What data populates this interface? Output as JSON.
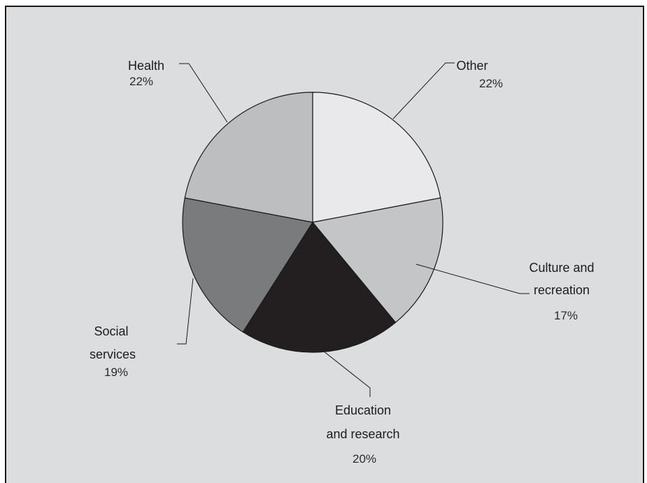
{
  "chart_data": {
    "type": "pie",
    "title": "",
    "slices": [
      {
        "label_lines": [
          "Other"
        ],
        "value": 22,
        "value_label": "22%",
        "color": "#e9e9eb"
      },
      {
        "label_lines": [
          "Culture and",
          "recreation"
        ],
        "value": 17,
        "value_label": "17%",
        "color": "#c4c5c7"
      },
      {
        "label_lines": [
          "Education",
          "and research"
        ],
        "value": 20,
        "value_label": "20%",
        "color": "#231f20"
      },
      {
        "label_lines": [
          "Social",
          "services"
        ],
        "value": 19,
        "value_label": "19%",
        "color": "#7a7b7d"
      },
      {
        "label_lines": [
          "Health"
        ],
        "value": 22,
        "value_label": "22%",
        "color": "#bdbec0"
      }
    ]
  }
}
